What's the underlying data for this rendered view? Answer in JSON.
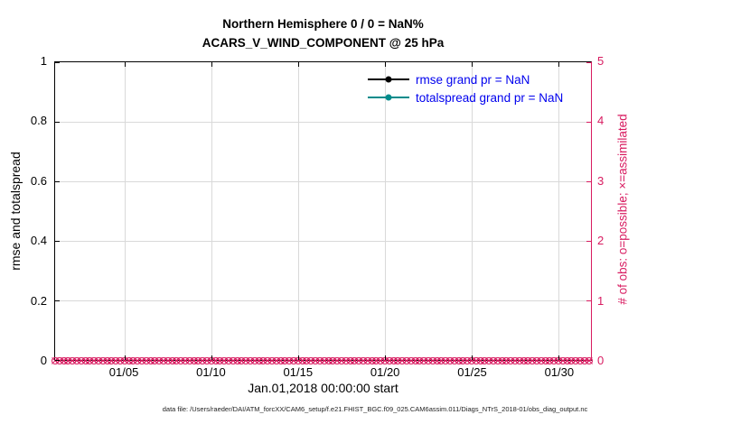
{
  "title": {
    "line1": "Northern Hemisphere 0 / 0 = NaN%",
    "line2": "ACARS_V_WIND_COMPONENT @ 25 hPa"
  },
  "axes": {
    "xlabel": "Jan.01,2018 00:00:00 start",
    "ylabel_left": "rmse and totalspread",
    "ylabel_right": "# of obs: o=possible; ×=assimilated",
    "x_range": [
      1,
      31.875
    ],
    "x_ticks": [
      {
        "day": 5,
        "label": "01/05"
      },
      {
        "day": 10,
        "label": "01/10"
      },
      {
        "day": 15,
        "label": "01/15"
      },
      {
        "day": 20,
        "label": "01/20"
      },
      {
        "day": 25,
        "label": "01/25"
      },
      {
        "day": 30,
        "label": "01/30"
      }
    ],
    "y_left": {
      "min": 0,
      "max": 1,
      "ticks": [
        {
          "value": 0,
          "label": "0"
        },
        {
          "value": 0.2,
          "label": "0.2"
        },
        {
          "value": 0.4,
          "label": "0.4"
        },
        {
          "value": 0.6,
          "label": "0.6"
        },
        {
          "value": 0.8,
          "label": "0.8"
        },
        {
          "value": 1,
          "label": "1"
        }
      ]
    },
    "y_right": {
      "min": 0,
      "max": 5,
      "ticks": [
        {
          "value": 0,
          "label": "0"
        },
        {
          "value": 1,
          "label": "1"
        },
        {
          "value": 2,
          "label": "2"
        },
        {
          "value": 3,
          "label": "3"
        },
        {
          "value": 4,
          "label": "4"
        },
        {
          "value": 5,
          "label": "5"
        }
      ]
    }
  },
  "legend": {
    "text_color": "#0000ee",
    "items": [
      {
        "label": "rmse grand pr = NaN",
        "color": "#000000"
      },
      {
        "label": "totalspread grand pr = NaN",
        "color": "#008b8b"
      }
    ]
  },
  "obs_markers": {
    "marker": "circle-with-x",
    "color": "#d81b60",
    "value": 0,
    "start_day": 1,
    "end_day": 31.75,
    "count": 124
  },
  "caption": "data file: /Users/raeder/DAI/ATM_forcXX/CAM6_setup/f.e21.FHIST_BGC.f09_025.CAM6assim.011/Diags_NTrS_2018-01/obs_diag_output.nc",
  "colors": {
    "right_axis": "#d81b60",
    "left_axis": "#000000",
    "grid": "#d9d9d9",
    "legend_text": "#0000ee",
    "totalspread": "#008b8b"
  },
  "chart_data": {
    "type": "line",
    "title": "Northern Hemisphere 0 / 0 = NaN% | ACARS_V_WIND_COMPONENT @ 25 hPa",
    "xlabel": "Jan.01,2018 00:00:00 start",
    "x_tick_labels": [
      "01/05",
      "01/10",
      "01/15",
      "01/20",
      "01/25",
      "01/30"
    ],
    "x_range_days": [
      1,
      31.875
    ],
    "left_axis": {
      "label": "rmse and totalspread",
      "ylim": [
        0,
        1
      ]
    },
    "right_axis": {
      "label": "# of obs: o=possible; ×=assimilated",
      "ylim": [
        0,
        5
      ]
    },
    "grid": true,
    "legend_position": "inside-top-right",
    "series": [
      {
        "name": "rmse grand pr = NaN",
        "axis": "left",
        "color": "#000000",
        "values": [],
        "note": "all values NaN - nothing plotted"
      },
      {
        "name": "totalspread grand pr = NaN",
        "axis": "left",
        "color": "#008b8b",
        "values": [],
        "note": "all values NaN - nothing plotted"
      },
      {
        "name": "possible obs (o)",
        "axis": "right",
        "color": "#d81b60",
        "constant_value": 0,
        "n_points": 124
      },
      {
        "name": "assimilated obs (x)",
        "axis": "right",
        "color": "#d81b60",
        "constant_value": 0,
        "n_points": 124
      }
    ]
  }
}
